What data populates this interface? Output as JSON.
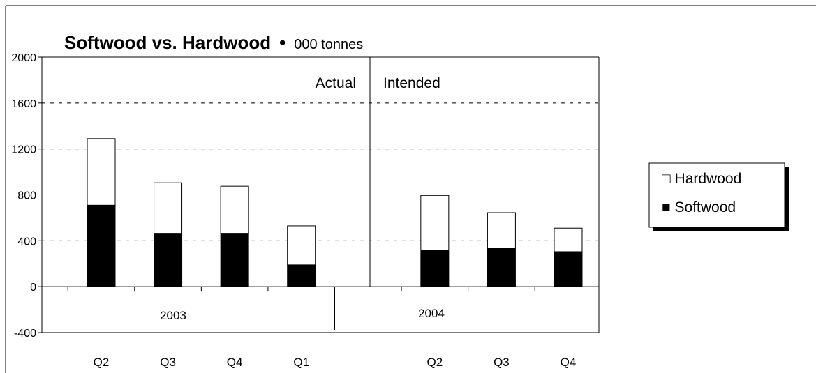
{
  "chart_data": {
    "type": "bar",
    "stacked": true,
    "title": "Softwood vs. Hardwood",
    "subtitle": "000 tonnes",
    "title_separator": "•",
    "xlabel": "",
    "ylabel": "",
    "ylim": [
      -400,
      2000
    ],
    "yticks": [
      2000,
      1600,
      1200,
      800,
      400,
      0,
      -400
    ],
    "grid": "dashed horizontal",
    "legend_position": "right",
    "categories": [
      "Q2",
      "Q3",
      "Q4",
      "Q1",
      "",
      "Q2",
      "Q3",
      "Q4"
    ],
    "groups": [
      {
        "label": "2003",
        "span": [
          0,
          3
        ]
      },
      {
        "label": "2004",
        "span": [
          4,
          8
        ]
      }
    ],
    "annotations": [
      {
        "text": "Actual",
        "side": "left-of-divider"
      },
      {
        "text": "Intended",
        "side": "right-of-divider"
      }
    ],
    "legend": [
      {
        "marker": "□",
        "label": "Hardwood"
      },
      {
        "marker": "■",
        "label": "Softwood"
      }
    ],
    "series": [
      {
        "name": "Softwood",
        "color": "#000000",
        "values": [
          710,
          465,
          465,
          190,
          null,
          320,
          335,
          305
        ]
      },
      {
        "name": "Hardwood",
        "color": "#ffffff",
        "values": [
          580,
          440,
          410,
          340,
          null,
          475,
          310,
          205
        ]
      }
    ]
  }
}
